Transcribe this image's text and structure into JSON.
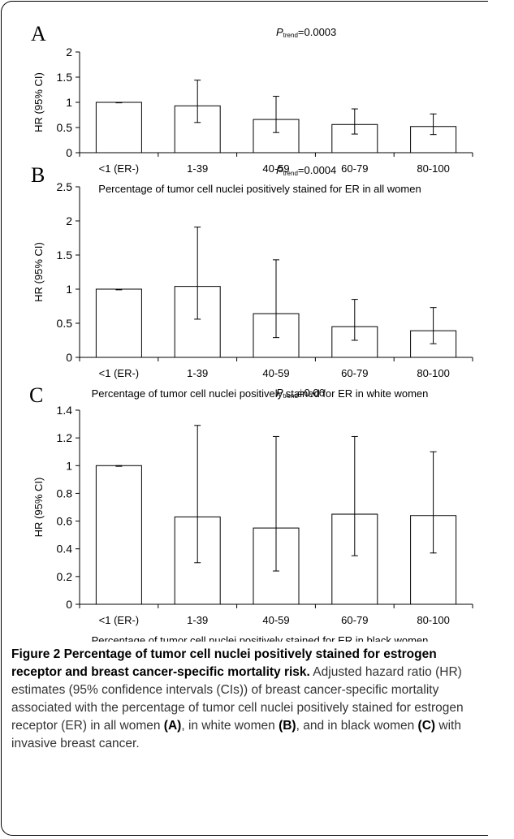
{
  "chart_data": [
    {
      "type": "bar",
      "panel": "A",
      "ptrend_label": "P",
      "ptrend_sub": "trend",
      "ptrend_value": "=0.0003",
      "ylabel": "HR (95% CI)",
      "xlabel": "Percentage of tumor cell nuclei positively stained for ER in all women",
      "categories": [
        "<1 (ER-)",
        "1-39",
        "40-59",
        "60-79",
        "80-100"
      ],
      "values": [
        1.0,
        0.93,
        0.66,
        0.56,
        0.52
      ],
      "ci_low": [
        0.99,
        0.6,
        0.4,
        0.37,
        0.36
      ],
      "ci_high": [
        1.0,
        1.44,
        1.12,
        0.87,
        0.77
      ],
      "ylim": [
        0,
        2
      ],
      "yticks": [
        0,
        0.5,
        1,
        1.5,
        2
      ],
      "yticklabels": [
        "0",
        "0.5",
        "1",
        "1.5",
        "2"
      ]
    },
    {
      "type": "bar",
      "panel": "B",
      "ptrend_label": "P",
      "ptrend_sub": "trend",
      "ptrend_value": "=0.0004",
      "ylabel": "HR (95% CI)",
      "xlabel": "Percentage of tumor cell nuclei positively stained for ER in white women",
      "categories": [
        "<1 (ER-)",
        "1-39",
        "40-59",
        "60-79",
        "80-100"
      ],
      "values": [
        1.0,
        1.04,
        0.64,
        0.45,
        0.39
      ],
      "ci_low": [
        0.99,
        0.56,
        0.29,
        0.25,
        0.2
      ],
      "ci_high": [
        1.0,
        1.91,
        1.43,
        0.85,
        0.73
      ],
      "ylim": [
        0,
        2.5
      ],
      "yticks": [
        0,
        0.5,
        1,
        1.5,
        2,
        2.5
      ],
      "yticklabels": [
        "0",
        "0.5",
        "1",
        "1.5",
        "2",
        "2.5"
      ]
    },
    {
      "type": "bar",
      "panel": "C",
      "ptrend_label": "P",
      "ptrend_sub": "trend",
      "ptrend_value": "=0.06",
      "ylabel": "HR (95% CI)",
      "xlabel": "Percentage of tumor cell nuclei positively stained for ER in black women",
      "categories": [
        "<1 (ER-)",
        "1-39",
        "40-59",
        "60-79",
        "80-100"
      ],
      "values": [
        1.0,
        0.63,
        0.55,
        0.65,
        0.64
      ],
      "ci_low": [
        0.995,
        0.3,
        0.24,
        0.35,
        0.37
      ],
      "ci_high": [
        1.0,
        1.29,
        1.21,
        1.21,
        1.1
      ],
      "ylim": [
        0,
        1.4
      ],
      "yticks": [
        0,
        0.2,
        0.4,
        0.6,
        0.8,
        1,
        1.2,
        1.4
      ],
      "yticklabels": [
        "0",
        "0.2",
        "0.4",
        "0.6",
        "0.8",
        "1",
        "1.2",
        "1.4"
      ]
    }
  ],
  "caption": {
    "title": "Figure 2 Percentage of tumor cell nuclei positively stained for estrogen receptor and breast cancer-specific mortality risk.",
    "body_1": " Adjusted hazard ratio (HR) estimates (95% confidence intervals (CIs)) of breast cancer-specific mortality associated with the percentage of tumor cell nuclei positively stained for estrogen receptor (ER) in all women ",
    "ref_a": "(A)",
    "body_2": ", in white women ",
    "ref_b": "(B)",
    "body_3": ", and in black women ",
    "ref_c": "(C)",
    "body_4": " with invasive breast cancer."
  }
}
